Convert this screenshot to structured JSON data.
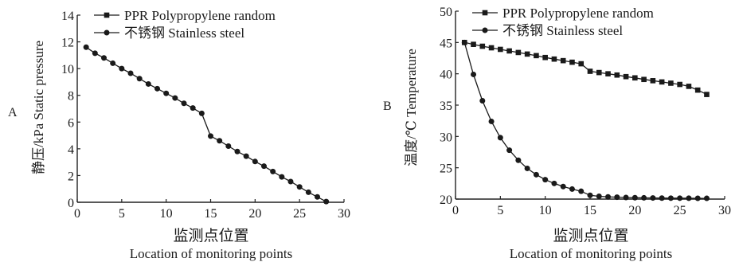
{
  "chart_data": [
    {
      "panel_label": "A",
      "type": "line",
      "xlabel_cn": "监测点位置",
      "xlabel_en": "Location of monitoring points",
      "ylabel": "静压/kPa  Static pressure",
      "xlim": [
        0,
        30
      ],
      "ylim": [
        0,
        14
      ],
      "xticks": [
        0,
        5,
        10,
        15,
        20,
        25,
        30
      ],
      "yticks": [
        0,
        2,
        4,
        6,
        8,
        10,
        12,
        14
      ],
      "legend_position": "top-center",
      "series": [
        {
          "name": "PPR Polypropylene random",
          "marker": "square",
          "x": [],
          "y": []
        },
        {
          "name": "不锈钢 Stainless steel",
          "marker": "circle",
          "x": [
            1,
            2,
            3,
            4,
            5,
            6,
            7,
            8,
            9,
            10,
            11,
            12,
            13,
            14,
            15,
            16,
            17,
            18,
            19,
            20,
            21,
            22,
            23,
            24,
            25,
            26,
            27,
            28
          ],
          "y": [
            11.6,
            11.15,
            10.8,
            10.4,
            10.0,
            9.65,
            9.25,
            8.85,
            8.5,
            8.15,
            7.8,
            7.4,
            7.05,
            6.65,
            4.95,
            4.6,
            4.2,
            3.8,
            3.45,
            3.05,
            2.7,
            2.3,
            1.9,
            1.55,
            1.15,
            0.75,
            0.4,
            0.05
          ]
        }
      ]
    },
    {
      "panel_label": "B",
      "type": "line",
      "xlabel_cn": "监测点位置",
      "xlabel_en": "Location of monitoring points",
      "ylabel": "温度/℃  Temperature",
      "xlim": [
        0,
        30
      ],
      "ylim": [
        20,
        50
      ],
      "xticks": [
        0,
        5,
        10,
        15,
        20,
        25,
        30
      ],
      "yticks": [
        20,
        25,
        30,
        35,
        40,
        45,
        50
      ],
      "legend_position": "top-center",
      "series": [
        {
          "name": "PPR Polypropylene random",
          "marker": "square",
          "x": [
            1,
            2,
            3,
            4,
            5,
            6,
            7,
            8,
            9,
            10,
            11,
            12,
            13,
            14,
            15,
            16,
            17,
            18,
            19,
            20,
            21,
            22,
            23,
            24,
            25,
            26,
            27,
            28
          ],
          "y": [
            45.0,
            44.7,
            44.4,
            44.15,
            43.9,
            43.65,
            43.4,
            43.15,
            42.9,
            42.6,
            42.35,
            42.1,
            41.85,
            41.6,
            40.4,
            40.2,
            40.0,
            39.8,
            39.55,
            39.35,
            39.1,
            38.9,
            38.7,
            38.5,
            38.3,
            38.0,
            37.4,
            36.7
          ]
        },
        {
          "name": "不锈钢 Stainless steel",
          "marker": "circle",
          "x": [
            1,
            2,
            3,
            4,
            5,
            6,
            7,
            8,
            9,
            10,
            11,
            12,
            13,
            14,
            15,
            16,
            17,
            18,
            19,
            20,
            21,
            22,
            23,
            24,
            25,
            26,
            27,
            28
          ],
          "y": [
            45.0,
            39.9,
            35.7,
            32.4,
            29.8,
            27.8,
            26.2,
            24.9,
            23.9,
            23.1,
            22.5,
            22.0,
            21.6,
            21.25,
            20.6,
            20.45,
            20.35,
            20.3,
            20.25,
            20.22,
            20.2,
            20.18,
            20.16,
            20.15,
            20.15,
            20.14,
            20.13,
            20.12
          ]
        }
      ]
    }
  ]
}
